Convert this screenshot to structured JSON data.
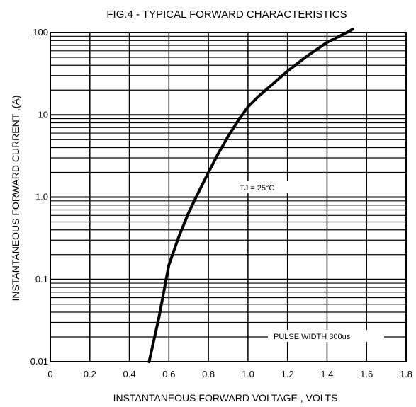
{
  "chart_data": {
    "type": "line",
    "title": "FIG.4 - TYPICAL FORWARD CHARACTERISTICS",
    "xlabel": "INSTANTANEOUS FORWARD VOLTAGE , VOLTS",
    "ylabel": "INSTANTANEOUS  FORWARD CURRENT ,(A)",
    "xlim": [
      0,
      1.8
    ],
    "ylim": [
      0.01,
      100
    ],
    "yscale": "log",
    "grid": true,
    "x_ticks": [
      "0",
      "0.2",
      "0.4",
      "0.6",
      "0.8",
      "1.0",
      "1.2",
      "1.4",
      "1.6",
      "1.8"
    ],
    "y_ticks": [
      "0.01",
      "0.1",
      "1.0",
      "10",
      "100"
    ],
    "annotations": [
      "TJ = 25°C",
      "PULSE WIDTH 300us"
    ],
    "series": [
      {
        "x": [
          0.5,
          0.55,
          0.6,
          0.65,
          0.7,
          0.75,
          0.8,
          0.85,
          0.9,
          0.95,
          1.0,
          1.05,
          1.1,
          1.2,
          1.3,
          1.4,
          1.5,
          1.53
        ],
        "y": [
          0.01,
          0.035,
          0.15,
          0.33,
          0.65,
          1.15,
          2.0,
          3.4,
          5.5,
          8.5,
          12.5,
          16.5,
          21,
          34,
          52,
          76,
          100,
          110
        ],
        "color": "#000000"
      }
    ]
  }
}
